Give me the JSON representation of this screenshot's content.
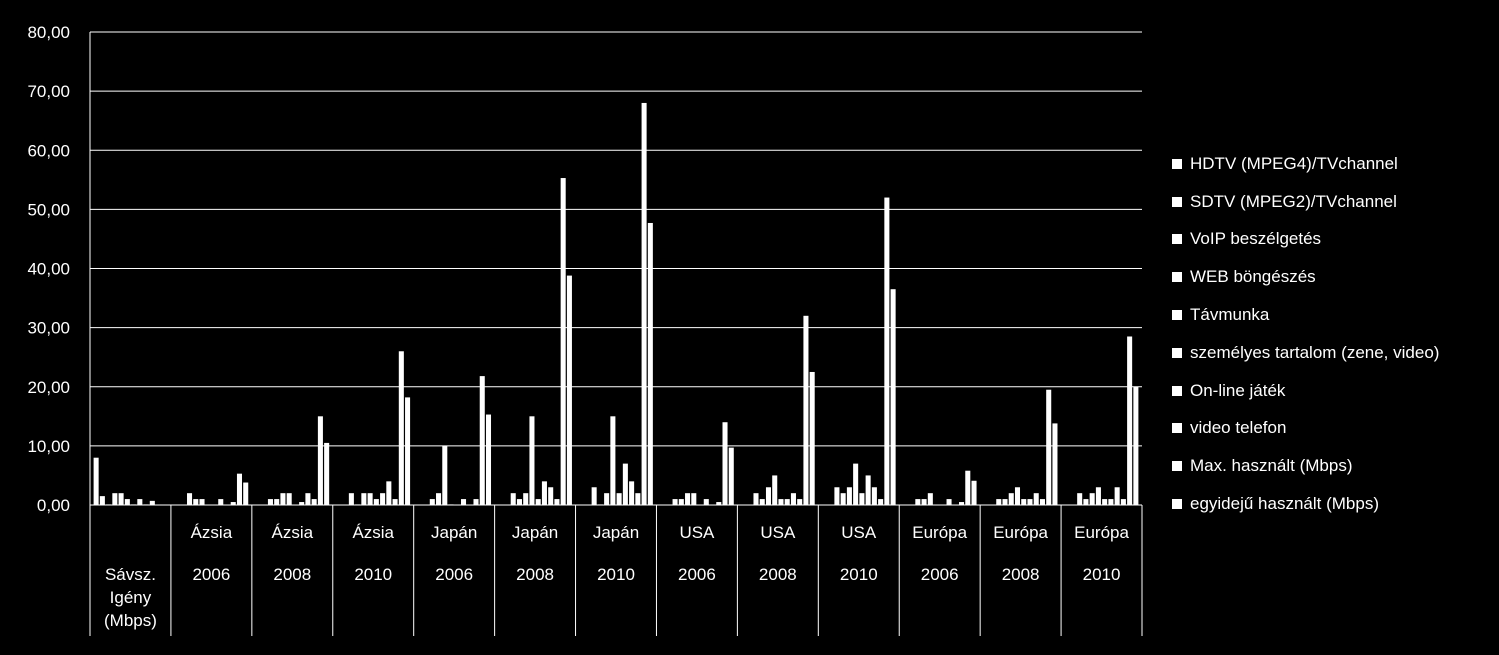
{
  "chart_data": {
    "type": "bar",
    "ylim": [
      0,
      80
    ],
    "yticks": [
      "0,00",
      "10,00",
      "20,00",
      "30,00",
      "40,00",
      "50,00",
      "60,00",
      "70,00",
      "80,00"
    ],
    "grid": true,
    "legend_position": "right",
    "bar_color": "#ffffff",
    "background": "#000000",
    "categories": [
      {
        "region": "",
        "year": "",
        "first_label_lines": [
          "Sávsz.",
          "Igény",
          "(Mbps)"
        ]
      },
      {
        "region": "Ázsia",
        "year": "2006"
      },
      {
        "region": "Ázsia",
        "year": "2008"
      },
      {
        "region": "Ázsia",
        "year": "2010"
      },
      {
        "region": "Japán",
        "year": "2006"
      },
      {
        "region": "Japán",
        "year": "2008"
      },
      {
        "region": "Japán",
        "year": "2010"
      },
      {
        "region": "USA",
        "year": "2006"
      },
      {
        "region": "USA",
        "year": "2008"
      },
      {
        "region": "USA",
        "year": "2010"
      },
      {
        "region": "Európa",
        "year": "2006"
      },
      {
        "region": "Európa",
        "year": "2008"
      },
      {
        "region": "Európa",
        "year": "2010"
      }
    ],
    "series": [
      {
        "name": "HDTV (MPEG4)/TVchannel",
        "values": [
          8,
          0,
          0,
          0,
          0,
          0,
          0,
          0,
          0,
          0,
          0,
          0,
          0
        ]
      },
      {
        "name": "SDTV (MPEG2)/TVchannel",
        "values": [
          1.5,
          0,
          0,
          0,
          0,
          0,
          0,
          0,
          0,
          0,
          0,
          0,
          0
        ]
      },
      {
        "name": "VoIP beszélgetés",
        "values": [
          0.1,
          2,
          1,
          2,
          1,
          2,
          3,
          1,
          2,
          3,
          1,
          1,
          2
        ]
      },
      {
        "name": "WEB böngészés",
        "values": [
          2,
          1,
          1,
          0.1,
          2,
          1,
          0.1,
          1,
          1,
          2,
          1,
          1,
          1
        ]
      },
      {
        "name": "Távmunka",
        "values": [
          2,
          1,
          2,
          2,
          10,
          2,
          2,
          2,
          3,
          3,
          2,
          2,
          2
        ]
      },
      {
        "name": "személyes tartalom (zene, video)",
        "values": [
          1,
          0,
          2,
          2,
          0.1,
          15,
          15,
          2,
          5,
          7,
          0,
          3,
          3
        ]
      },
      {
        "name": "On-line játék",
        "values": [
          0.1,
          0,
          0,
          1,
          0,
          1,
          2,
          0,
          1,
          2,
          0,
          1,
          1
        ]
      },
      {
        "name": "video telefon",
        "values": [
          1,
          1,
          0.5,
          2,
          1,
          4,
          7,
          1,
          1,
          5,
          1,
          1,
          1
        ]
      },
      {
        "name": "Max. használt (Mbps)",
        "values": [
          0.1,
          0,
          2,
          4,
          0,
          3,
          4,
          0,
          2,
          3,
          0,
          2,
          3
        ]
      },
      {
        "name": "",
        "values": [
          0.7,
          0.5,
          1,
          1,
          1,
          1,
          2,
          0.5,
          1,
          1,
          0.5,
          1,
          1
        ]
      },
      {
        "name": "",
        "values": [
          0,
          5.3,
          15,
          26,
          21.8,
          55.3,
          68,
          14,
          32,
          52,
          5.8,
          19.5,
          28.5
        ]
      },
      {
        "name": "egyidejű használt (Mbps)",
        "values": [
          0,
          3.8,
          10.5,
          18.2,
          15.3,
          38.8,
          47.7,
          9.7,
          22.5,
          36.5,
          4.1,
          13.8,
          20
        ]
      }
    ]
  }
}
